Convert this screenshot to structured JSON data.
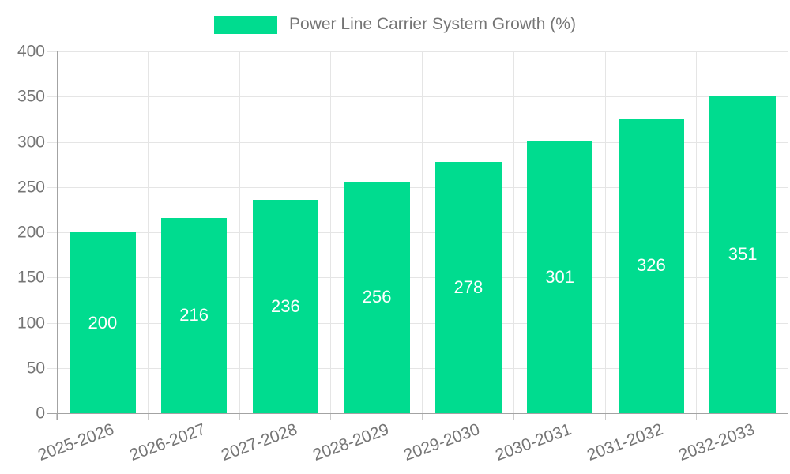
{
  "chart_data": {
    "type": "bar",
    "title": "Power Line Carrier System Growth (%)",
    "legend": [
      "Power Line Carrier System Growth (%)"
    ],
    "legend_position": "top-center",
    "categories": [
      "2025-2026",
      "2026-2027",
      "2027-2028",
      "2028-2029",
      "2029-2030",
      "2030-2031",
      "2031-2032",
      "2032-2033"
    ],
    "values": [
      200,
      216,
      236,
      256,
      278,
      301,
      326,
      351
    ],
    "xlabel": "",
    "ylabel": "",
    "ylim": [
      0,
      400
    ],
    "yticks": [
      0,
      50,
      100,
      150,
      200,
      250,
      300,
      350,
      400
    ],
    "grid": true,
    "x_label_rotation_deg": -20,
    "value_labels": "inside-center",
    "bar_color": "#00DC8F",
    "value_label_color": "#ffffff",
    "axis_text_color": "#757575",
    "gridline_color": "#e5e5e5",
    "axis_line_color": "#a3a3a3",
    "background_color": "#ffffff"
  }
}
